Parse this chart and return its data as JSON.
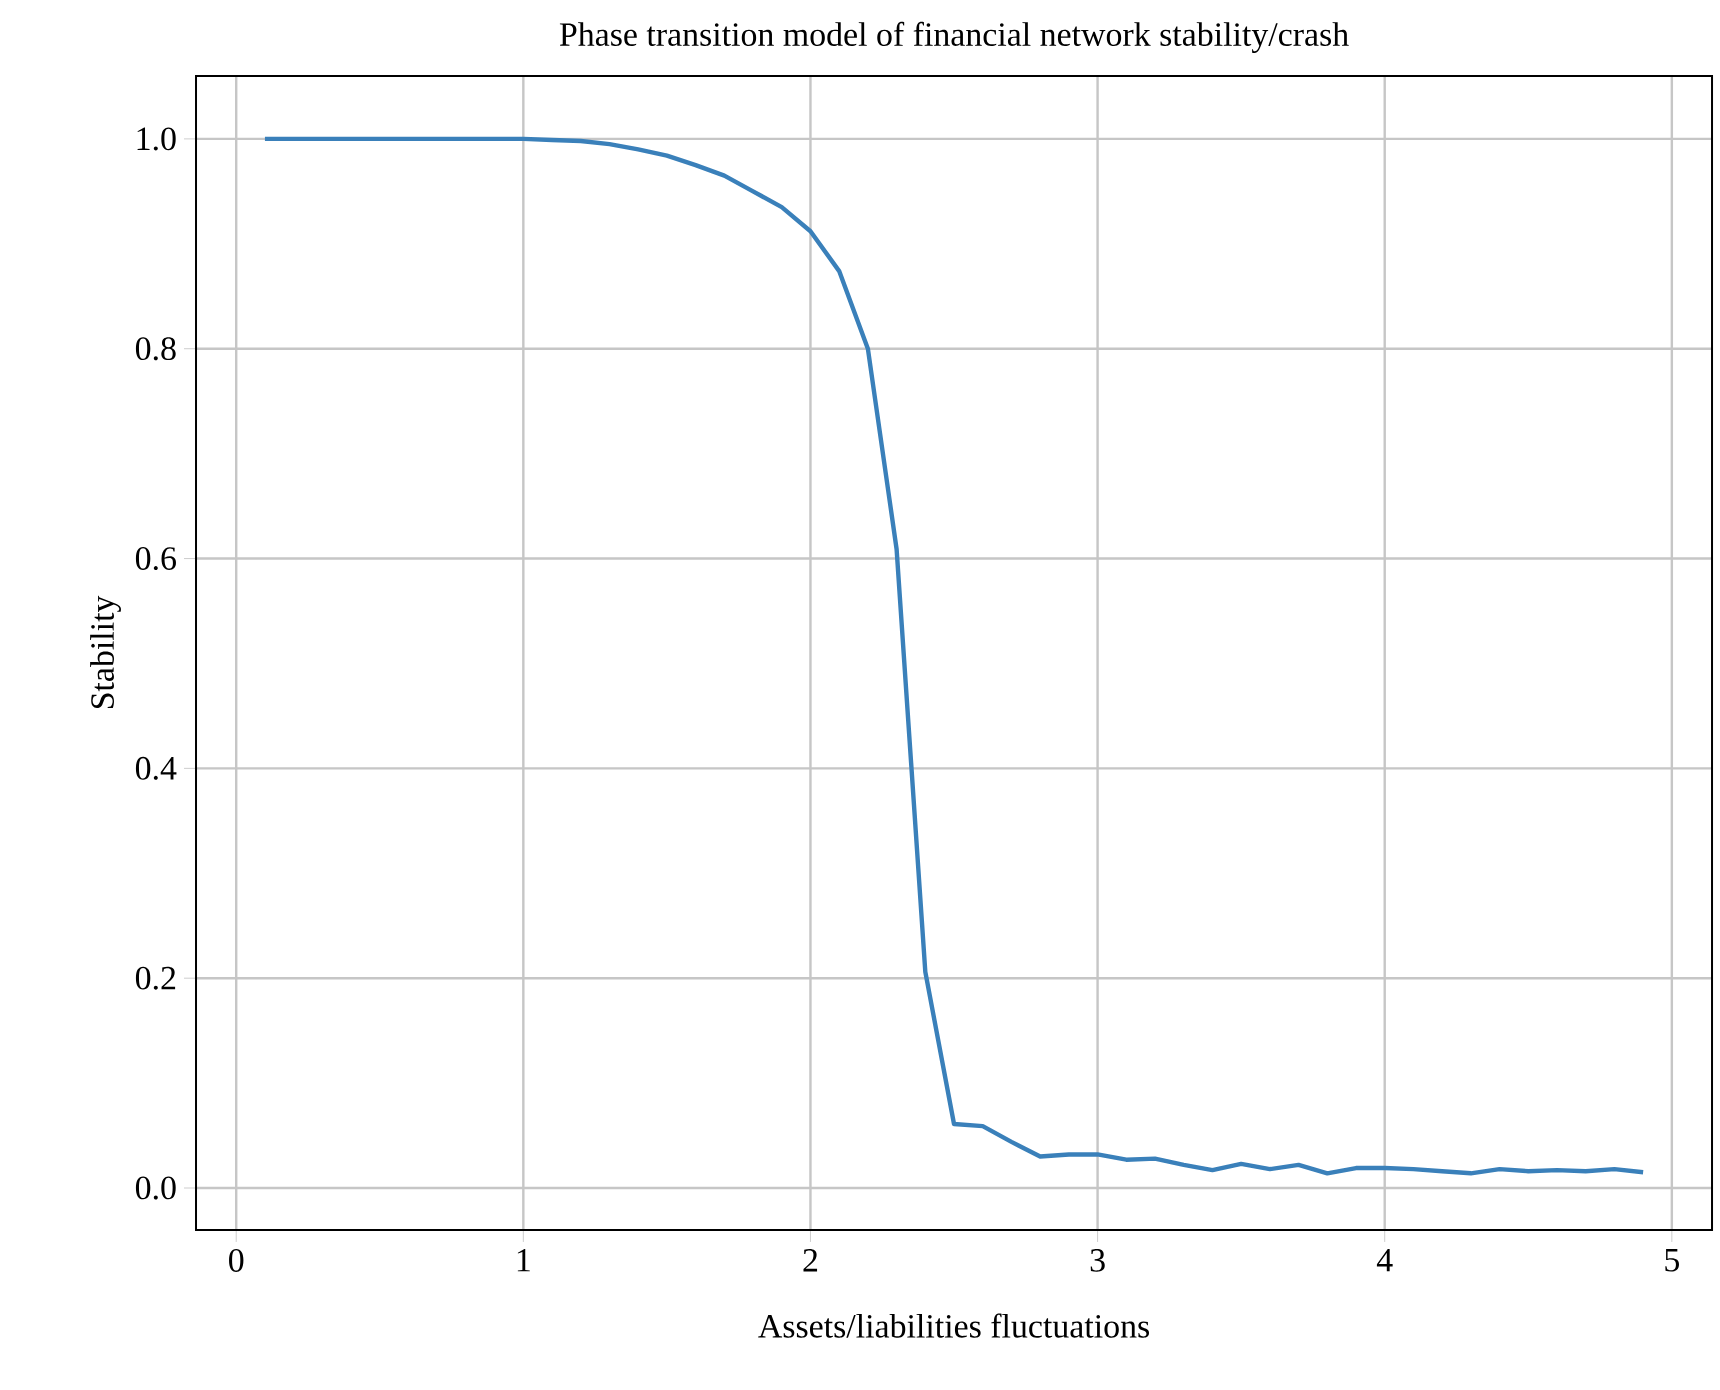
{
  "chart_data": {
    "type": "line",
    "title": "Phase transition model of financial network stability/crash",
    "xlabel": "Assets/liabilities fluctuations",
    "ylabel": "Stability",
    "x": [
      0.1,
      0.2,
      0.3,
      0.4,
      0.5,
      0.6,
      0.7,
      0.8,
      0.9,
      1.0,
      1.1,
      1.2,
      1.3,
      1.4,
      1.5,
      1.6,
      1.7,
      1.8,
      1.9,
      2.0,
      2.1,
      2.2,
      2.3,
      2.4,
      2.5,
      2.6,
      2.7,
      2.8,
      2.9,
      3.0,
      3.1,
      3.2,
      3.3,
      3.4,
      3.5,
      3.6,
      3.7,
      3.8,
      3.9,
      4.0,
      4.1,
      4.2,
      4.3,
      4.4,
      4.5,
      4.6,
      4.7,
      4.8,
      4.9
    ],
    "series": [
      {
        "color": "#3a80ba",
        "values": [
          1.0,
          1.0,
          1.0,
          1.0,
          1.0,
          1.0,
          1.0,
          1.0,
          1.0,
          1.0,
          0.999,
          0.998,
          0.995,
          0.99,
          0.984,
          0.975,
          0.965,
          0.95,
          0.935,
          0.912,
          0.874,
          0.8,
          0.609,
          0.206,
          0.061,
          0.059,
          0.044,
          0.03,
          0.032,
          0.032,
          0.027,
          0.028,
          0.022,
          0.017,
          0.023,
          0.018,
          0.022,
          0.014,
          0.019,
          0.019,
          0.018,
          0.016,
          0.014,
          0.018,
          0.016,
          0.017,
          0.016,
          0.018,
          0.015
        ]
      }
    ],
    "xlim": [
      -0.14,
      5.14
    ],
    "ylim": [
      -0.04,
      1.06
    ],
    "xticks": [
      0,
      1,
      2,
      3,
      4,
      5
    ],
    "yticks": [
      {
        "value": 0.0,
        "label": "0.0"
      },
      0.2,
      0.4,
      0.6,
      0.8,
      {
        "value": 1.0,
        "label": "1.0"
      }
    ],
    "grid": true,
    "line_style": "solid",
    "marker": "none"
  }
}
